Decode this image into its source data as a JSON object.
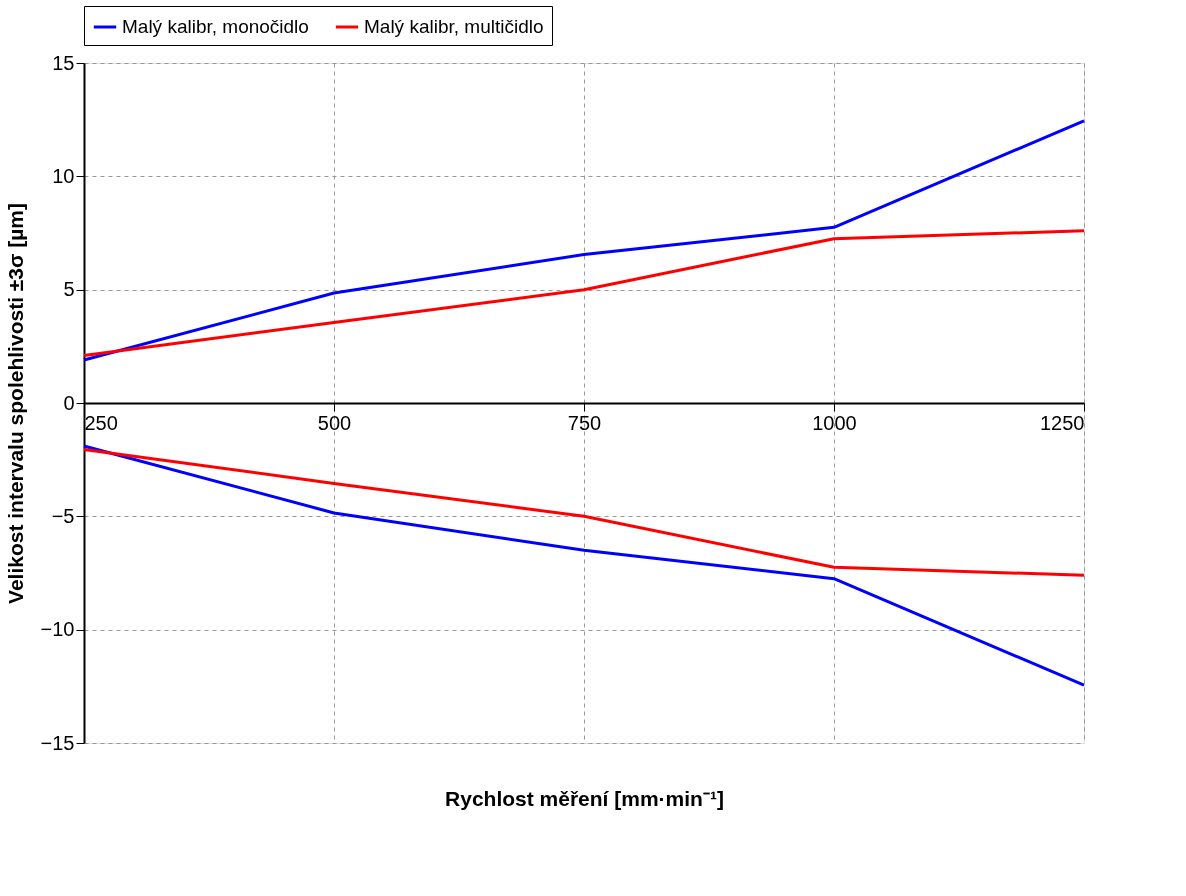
{
  "chart_data": {
    "type": "line",
    "xlabel": "Rychlost měření [mm·min⁻¹]",
    "ylabel": "Velikost intervalu spolehlivosti ±3σ [µm]",
    "x": [
      250,
      500,
      750,
      1000,
      1250
    ],
    "series": [
      {
        "name": "Malý kalibr, monočidlo",
        "color": "#0000ff",
        "values": [
          1.9,
          4.85,
          6.55,
          7.75,
          12.45
        ]
      },
      {
        "name": "Malý kalibr, multičidlo",
        "color": "#ff0000",
        "values": [
          2.1,
          3.55,
          5.0,
          7.25,
          7.6
        ]
      },
      {
        "color": "#0000ff",
        "values": [
          -1.9,
          -4.85,
          -6.5,
          -7.75,
          -12.45
        ]
      },
      {
        "color": "#ff0000",
        "values": [
          -2.05,
          -3.55,
          -5.0,
          -7.25,
          -7.6
        ]
      }
    ],
    "xlim": [
      250,
      1250
    ],
    "xticks": [
      250,
      500,
      750,
      1000,
      1250
    ],
    "ylim": [
      -15,
      15
    ],
    "yticks": [
      -15,
      -10,
      -5,
      0,
      5,
      10,
      15
    ],
    "grid": true,
    "legend": "top",
    "marker": "none",
    "line_style": "solid"
  }
}
